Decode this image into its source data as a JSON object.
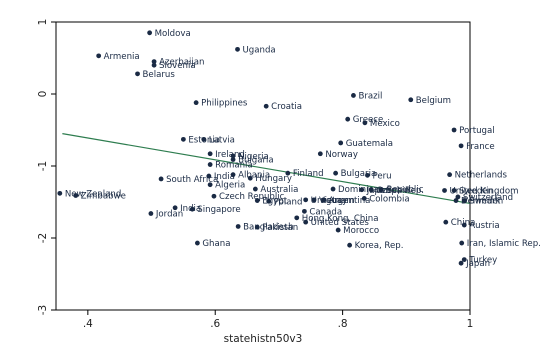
{
  "chart_data": {
    "type": "scatter",
    "title": "",
    "xlabel": "statehistn50v3",
    "ylabel": "",
    "xlim": [
      0.35,
      1.0
    ],
    "ylim": [
      -3.0,
      1.0
    ],
    "xticks": [
      {
        "value": 0.4,
        "label": ".4"
      },
      {
        "value": 0.6,
        "label": ".6"
      },
      {
        "value": 0.8,
        "label": ".8"
      },
      {
        "value": 1.0,
        "label": "1"
      }
    ],
    "yticks": [
      {
        "value": -3,
        "label": "-3"
      },
      {
        "value": -2,
        "label": "-2"
      },
      {
        "value": -1,
        "label": "-1"
      },
      {
        "value": 0,
        "label": "0"
      },
      {
        "value": 1,
        "label": "1"
      }
    ],
    "grid": false,
    "legend": "none",
    "colors": {
      "points": "#1a2a44",
      "fit_line": "#2e7d4f",
      "frame": "#000000",
      "background": "#ffffff"
    },
    "fit_line": {
      "x": [
        0.36,
        1.0
      ],
      "y": [
        -0.55,
        -1.52
      ]
    },
    "points": [
      {
        "label": "Moldova",
        "x": 0.497,
        "y": 0.85
      },
      {
        "label": "Uganda",
        "x": 0.635,
        "y": 0.62
      },
      {
        "label": "Armenia",
        "x": 0.417,
        "y": 0.53
      },
      {
        "label": "Azerbaijan",
        "x": 0.504,
        "y": 0.45
      },
      {
        "label": "Slovenia",
        "x": 0.504,
        "y": 0.4
      },
      {
        "label": "Belarus",
        "x": 0.478,
        "y": 0.28
      },
      {
        "label": "Brazil",
        "x": 0.817,
        "y": -0.02
      },
      {
        "label": "Belgium",
        "x": 0.907,
        "y": -0.08
      },
      {
        "label": "Philippines",
        "x": 0.57,
        "y": -0.12
      },
      {
        "label": "Croatia",
        "x": 0.68,
        "y": -0.17
      },
      {
        "label": "Greece",
        "x": 0.808,
        "y": -0.35
      },
      {
        "label": "Mexico",
        "x": 0.835,
        "y": -0.4
      },
      {
        "label": "Portugal",
        "x": 0.975,
        "y": -0.5
      },
      {
        "label": "Estonia",
        "x": 0.55,
        "y": -0.63
      },
      {
        "label": "Latvia",
        "x": 0.582,
        "y": -0.63
      },
      {
        "label": "Guatemala",
        "x": 0.797,
        "y": -0.68
      },
      {
        "label": "France",
        "x": 0.986,
        "y": -0.72
      },
      {
        "label": "Ireland",
        "x": 0.592,
        "y": -0.83
      },
      {
        "label": "Norway",
        "x": 0.765,
        "y": -0.83
      },
      {
        "label": "Nigeria",
        "x": 0.628,
        "y": -0.86
      },
      {
        "label": "Bulgaria",
        "x": 0.628,
        "y": -0.91
      },
      {
        "label": "Romania",
        "x": 0.592,
        "y": -0.98
      },
      {
        "label": "Finland",
        "x": 0.714,
        "y": -1.1
      },
      {
        "label": "Bulgaria",
        "x": 0.789,
        "y": -1.1
      },
      {
        "label": "Peru",
        "x": 0.839,
        "y": -1.13
      },
      {
        "label": "Netherlands",
        "x": 0.968,
        "y": -1.12
      },
      {
        "label": "Albania",
        "x": 0.628,
        "y": -1.12
      },
      {
        "label": "India",
        "x": 0.59,
        "y": -1.14
      },
      {
        "label": "South Africa",
        "x": 0.515,
        "y": -1.18
      },
      {
        "label": "Hungary",
        "x": 0.655,
        "y": -1.17
      },
      {
        "label": "Algeria",
        "x": 0.592,
        "y": -1.26
      },
      {
        "label": "Australia",
        "x": 0.663,
        "y": -1.32
      },
      {
        "label": "Dominican Republic",
        "x": 0.785,
        "y": -1.32
      },
      {
        "label": "Japan",
        "x": 0.83,
        "y": -1.33
      },
      {
        "label": "Czech Rep.",
        "x": 0.845,
        "y": -1.33
      },
      {
        "label": "Spain",
        "x": 0.86,
        "y": -1.33
      },
      {
        "label": "United Kingdom",
        "x": 0.96,
        "y": -1.34
      },
      {
        "label": "Sweden",
        "x": 0.975,
        "y": -1.34
      },
      {
        "label": "New Zealand",
        "x": 0.356,
        "y": -1.38
      },
      {
        "label": "Zimbabwe",
        "x": 0.381,
        "y": -1.41
      },
      {
        "label": "Czech Republic",
        "x": 0.598,
        "y": -1.42
      },
      {
        "label": "Switzerland",
        "x": 0.981,
        "y": -1.43
      },
      {
        "label": "Colombia",
        "x": 0.834,
        "y": -1.45
      },
      {
        "label": "Uruguay",
        "x": 0.742,
        "y": -1.47
      },
      {
        "label": "Vietnam",
        "x": 0.755,
        "y": -1.47
      },
      {
        "label": "Argentina",
        "x": 0.77,
        "y": -1.47
      },
      {
        "label": "Egypt",
        "x": 0.666,
        "y": -1.48
      },
      {
        "label": "Poland",
        "x": 0.684,
        "y": -1.49
      },
      {
        "label": "Denmark",
        "x": 0.978,
        "y": -1.48
      },
      {
        "label": "Sweden",
        "x": 0.991,
        "y": -1.48
      },
      {
        "label": "India",
        "x": 0.537,
        "y": -1.58
      },
      {
        "label": "Singapore",
        "x": 0.564,
        "y": -1.6
      },
      {
        "label": "Canada",
        "x": 0.74,
        "y": -1.63
      },
      {
        "label": "Jordan",
        "x": 0.499,
        "y": -1.66
      },
      {
        "label": "Hong Kong, China",
        "x": 0.728,
        "y": -1.72
      },
      {
        "label": "United States",
        "x": 0.742,
        "y": -1.78
      },
      {
        "label": "China",
        "x": 0.962,
        "y": -1.78
      },
      {
        "label": "Austria",
        "x": 0.991,
        "y": -1.82
      },
      {
        "label": "Bangladesh",
        "x": 0.636,
        "y": -1.84
      },
      {
        "label": "Pakistan",
        "x": 0.666,
        "y": -1.85
      },
      {
        "label": "Morocco",
        "x": 0.793,
        "y": -1.89
      },
      {
        "label": "Iran, Islamic Rep.",
        "x": 0.987,
        "y": -2.07
      },
      {
        "label": "Ghana",
        "x": 0.572,
        "y": -2.07
      },
      {
        "label": "Korea, Rep.",
        "x": 0.811,
        "y": -2.1
      },
      {
        "label": "Turkey",
        "x": 0.991,
        "y": -2.3
      },
      {
        "label": "Japan",
        "x": 0.986,
        "y": -2.35
      }
    ]
  }
}
